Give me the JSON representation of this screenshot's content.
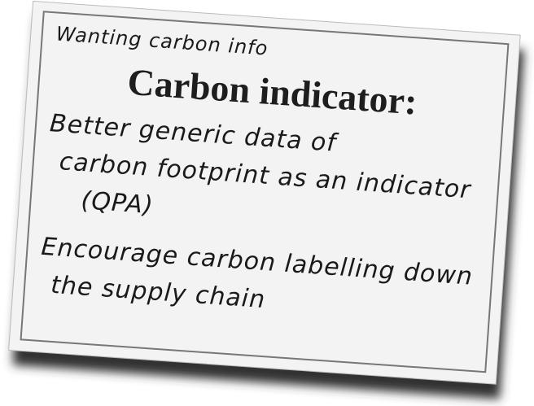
{
  "note": "Wanting carbon info",
  "title": "Carbon indicator:",
  "items": [
    {
      "lines": [
        "Better generic data of",
        "carbon footprint as an indicator",
        "(QPA)"
      ]
    },
    {
      "lines": [
        "Encourage carbon labelling down",
        "the supply chain"
      ]
    }
  ]
}
